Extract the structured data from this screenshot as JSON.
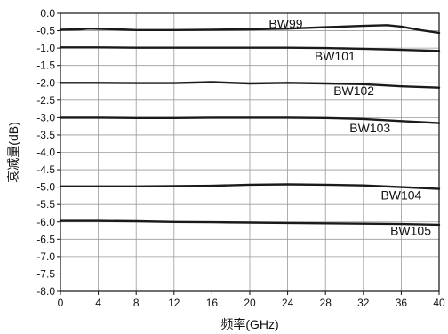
{
  "chart_data": {
    "type": "line",
    "title": "",
    "xlabel": "频率(GHz)",
    "ylabel": "衰减量(dB)",
    "xlim": [
      0,
      40
    ],
    "ylim": [
      -8.0,
      0.0
    ],
    "xticks": [
      0,
      4,
      8,
      12,
      16,
      20,
      24,
      28,
      32,
      36,
      40
    ],
    "yticks": [
      0.0,
      -0.5,
      -1.0,
      -1.5,
      -2.0,
      -2.5,
      -3.0,
      -3.5,
      -4.0,
      -4.5,
      -5.0,
      -5.5,
      -6.0,
      -6.5,
      -7.0,
      -7.5,
      -8.0
    ],
    "grid": true,
    "legend": "inline labels",
    "line_color": "#1a1a1a",
    "series": [
      {
        "name": "BW99",
        "x": [
          0,
          2,
          3,
          6,
          8,
          12,
          16,
          20,
          24,
          28,
          32,
          34.5,
          36,
          38,
          40
        ],
        "y": [
          -0.47,
          -0.46,
          -0.44,
          -0.46,
          -0.48,
          -0.48,
          -0.47,
          -0.46,
          -0.44,
          -0.4,
          -0.36,
          -0.34,
          -0.38,
          -0.48,
          -0.56
        ]
      },
      {
        "name": "BW101",
        "x": [
          0,
          4,
          8,
          12,
          16,
          20,
          24,
          28,
          32,
          36,
          40
        ],
        "y": [
          -0.98,
          -0.98,
          -0.99,
          -0.99,
          -0.99,
          -0.99,
          -0.99,
          -1.0,
          -1.02,
          -1.05,
          -1.08
        ]
      },
      {
        "name": "BW102",
        "x": [
          0,
          4,
          8,
          12,
          16,
          20,
          24,
          28,
          32,
          36,
          40
        ],
        "y": [
          -2.0,
          -2.0,
          -2.01,
          -2.01,
          -1.98,
          -2.02,
          -2.0,
          -2.02,
          -2.04,
          -2.1,
          -2.14
        ]
      },
      {
        "name": "BW103",
        "x": [
          0,
          4,
          8,
          12,
          16,
          20,
          24,
          28,
          32,
          36,
          40
        ],
        "y": [
          -3.0,
          -3.0,
          -3.01,
          -3.01,
          -3.0,
          -3.0,
          -3.0,
          -3.01,
          -3.04,
          -3.1,
          -3.16
        ]
      },
      {
        "name": "BW104",
        "x": [
          0,
          4,
          8,
          12,
          16,
          20,
          24,
          28,
          32,
          36,
          40
        ],
        "y": [
          -4.98,
          -4.98,
          -4.98,
          -4.97,
          -4.96,
          -4.93,
          -4.92,
          -4.93,
          -4.95,
          -5.0,
          -5.05
        ]
      },
      {
        "name": "BW105",
        "x": [
          0,
          4,
          8,
          12,
          16,
          20,
          24,
          28,
          32,
          36,
          40
        ],
        "y": [
          -5.97,
          -5.97,
          -5.98,
          -6.0,
          -6.01,
          -6.02,
          -6.03,
          -6.04,
          -6.05,
          -6.06,
          -6.08
        ]
      }
    ],
    "labels": [
      {
        "series": "BW99",
        "x": 23.8,
        "y": -0.3
      },
      {
        "series": "BW101",
        "x": 29.0,
        "y": -1.23
      },
      {
        "series": "BW102",
        "x": 31.0,
        "y": -2.23
      },
      {
        "series": "BW103",
        "x": 32.7,
        "y": -3.3
      },
      {
        "series": "BW104",
        "x": 36.0,
        "y": -5.23
      },
      {
        "series": "BW105",
        "x": 37.0,
        "y": -6.25
      }
    ]
  }
}
